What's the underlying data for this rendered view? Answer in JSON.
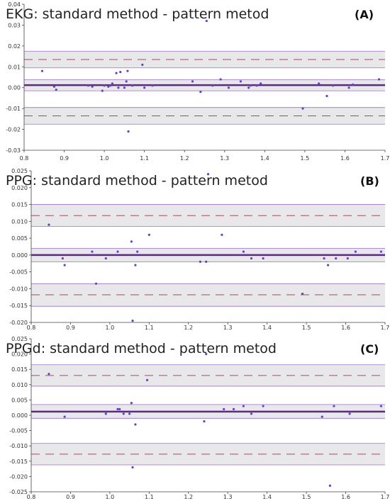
{
  "chart_data": [
    {
      "type": "scatter",
      "title": "EKG: standard method - pattern metod",
      "panel_label": "(A)",
      "xlabel": "",
      "ylabel": "",
      "xlim": [
        0.8,
        1.7
      ],
      "ylim": [
        -0.03,
        0.04
      ],
      "xticks": [
        "0.8",
        "0.9",
        "1.0",
        "1.1",
        "1.2",
        "1.3",
        "1.4",
        "1.5",
        "1.6",
        "1.7"
      ],
      "yticks": [
        "-0.03",
        "-0.02",
        "-0.01",
        "0.00",
        "0.01",
        "0.02",
        "0.03",
        "0.04"
      ],
      "mean_line": 0.0012,
      "mean_band": [
        -0.0015,
        0.0038
      ],
      "upper_loa": 0.0135,
      "upper_band": [
        0.0095,
        0.0175
      ],
      "lower_loa": -0.0135,
      "lower_band": [
        -0.0175,
        -0.0095
      ],
      "points": [
        [
          0.845,
          0.008
        ],
        [
          0.875,
          0.0005
        ],
        [
          0.88,
          -0.001
        ],
        [
          0.96,
          0.001
        ],
        [
          0.97,
          0.0005
        ],
        [
          0.995,
          -0.0015
        ],
        [
          1.0,
          0.001
        ],
        [
          1.01,
          0.0005
        ],
        [
          1.015,
          0.001
        ],
        [
          1.02,
          0.002
        ],
        [
          1.03,
          0.007
        ],
        [
          1.035,
          0.0
        ],
        [
          1.04,
          0.0075
        ],
        [
          1.05,
          0.0
        ],
        [
          1.055,
          0.003
        ],
        [
          1.058,
          0.008
        ],
        [
          1.06,
          -0.021
        ],
        [
          1.07,
          0.001
        ],
        [
          1.095,
          0.011
        ],
        [
          1.1,
          0.0
        ],
        [
          1.12,
          0.001
        ],
        [
          1.22,
          0.003
        ],
        [
          1.24,
          -0.002
        ],
        [
          1.255,
          0.032
        ],
        [
          1.27,
          0.001
        ],
        [
          1.29,
          0.004
        ],
        [
          1.31,
          0.0
        ],
        [
          1.34,
          0.003
        ],
        [
          1.36,
          0.0
        ],
        [
          1.365,
          0.001
        ],
        [
          1.38,
          0.001
        ],
        [
          1.39,
          0.002
        ],
        [
          1.495,
          -0.01
        ],
        [
          1.535,
          0.002
        ],
        [
          1.555,
          -0.004
        ],
        [
          1.57,
          0.001
        ],
        [
          1.61,
          0.0
        ],
        [
          1.62,
          0.0015
        ],
        [
          1.685,
          0.004
        ]
      ]
    },
    {
      "type": "scatter",
      "title": "PPG: standard method - pattern metod",
      "panel_label": "(B)",
      "xlabel": "",
      "ylabel": "",
      "xlim": [
        0.8,
        1.7
      ],
      "ylim": [
        -0.02,
        0.025
      ],
      "xticks": [
        "0.8",
        "0.9",
        "1.0",
        "1.1",
        "1.2",
        "1.3",
        "1.4",
        "1.5",
        "1.6",
        "1.7"
      ],
      "yticks": [
        "-0.020",
        "-0.015",
        "-0.010",
        "-0.005",
        "0.000",
        "0.005",
        "0.010",
        "0.015",
        "0.020",
        "0.025"
      ],
      "mean_line": 0.0,
      "mean_band": [
        -0.002,
        0.002
      ],
      "upper_loa": 0.0117,
      "upper_band": [
        0.0085,
        0.015
      ],
      "lower_loa": -0.0118,
      "lower_band": [
        -0.0152,
        -0.0085
      ],
      "points": [
        [
          0.845,
          0.009
        ],
        [
          0.88,
          -0.001
        ],
        [
          0.885,
          -0.003
        ],
        [
          0.955,
          0.001
        ],
        [
          0.965,
          -0.0085
        ],
        [
          0.99,
          -0.001
        ],
        [
          1.02,
          0.001
        ],
        [
          1.055,
          0.004
        ],
        [
          1.058,
          -0.0195
        ],
        [
          1.065,
          -0.003
        ],
        [
          1.07,
          0.001
        ],
        [
          1.1,
          0.006
        ],
        [
          1.23,
          -0.002
        ],
        [
          1.245,
          -0.002
        ],
        [
          1.25,
          0.024
        ],
        [
          1.285,
          0.006
        ],
        [
          1.34,
          0.001
        ],
        [
          1.36,
          -0.001
        ],
        [
          1.39,
          -0.001
        ],
        [
          1.49,
          -0.0115
        ],
        [
          1.545,
          -0.001
        ],
        [
          1.555,
          -0.003
        ],
        [
          1.575,
          -0.001
        ],
        [
          1.605,
          -0.001
        ],
        [
          1.625,
          0.001
        ],
        [
          1.69,
          0.001
        ]
      ]
    },
    {
      "type": "scatter",
      "title": "PPGd: standard method - pattern metod",
      "panel_label": "(C)",
      "xlabel": "",
      "ylabel": "",
      "xlim": [
        0.8,
        1.7
      ],
      "ylim": [
        -0.025,
        0.025
      ],
      "xticks": [
        "0.8",
        "0.9",
        "1.0",
        "1.1",
        "1.2",
        "1.3",
        "1.4",
        "1.5",
        "1.6",
        "1.7"
      ],
      "yticks": [
        "-0.025",
        "-0.020",
        "-0.015",
        "-0.010",
        "-0.005",
        "0.000",
        "0.005",
        "0.010",
        "0.015",
        "0.020",
        "0.025"
      ],
      "mean_line": 0.0012,
      "mean_band": [
        -0.001,
        0.0035
      ],
      "upper_loa": 0.013,
      "upper_band": [
        0.0095,
        0.0165
      ],
      "lower_loa": -0.0127,
      "lower_band": [
        -0.0162,
        -0.0092
      ],
      "points": [
        [
          0.845,
          0.0135
        ],
        [
          0.885,
          -0.0005
        ],
        [
          0.99,
          0.0005
        ],
        [
          1.02,
          0.002
        ],
        [
          1.025,
          0.002
        ],
        [
          1.035,
          0.0005
        ],
        [
          1.05,
          0.0005
        ],
        [
          1.055,
          0.004
        ],
        [
          1.058,
          -0.017
        ],
        [
          1.065,
          -0.003
        ],
        [
          1.095,
          0.0115
        ],
        [
          1.24,
          -0.002
        ],
        [
          1.245,
          0.02
        ],
        [
          1.29,
          0.002
        ],
        [
          1.315,
          0.002
        ],
        [
          1.34,
          0.003
        ],
        [
          1.36,
          0.0005
        ],
        [
          1.39,
          0.003
        ],
        [
          1.54,
          -0.0005
        ],
        [
          1.56,
          -0.023
        ],
        [
          1.57,
          0.003
        ],
        [
          1.61,
          0.0005
        ],
        [
          1.69,
          0.003
        ]
      ]
    }
  ],
  "colors": {
    "background": "#ffffff",
    "band": "#e8e8ea",
    "mean_line": "#5a2a86",
    "loa_dash": "#9a4d6a",
    "band_edge": "#9b6fc9",
    "point": "#6a3fc0",
    "axis": "#444444",
    "text": "#222222"
  }
}
